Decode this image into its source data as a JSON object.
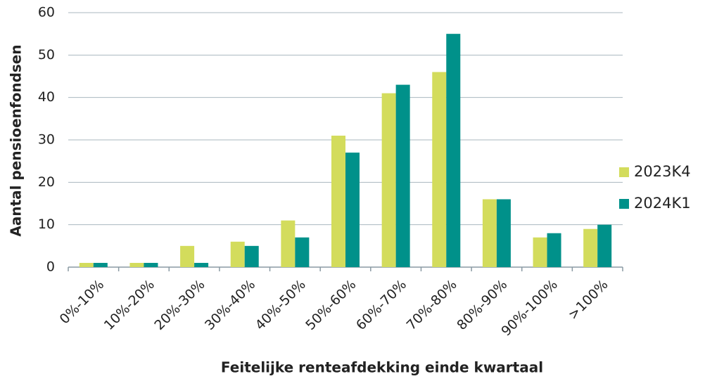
{
  "chart_data": {
    "type": "bar",
    "x_label": "Feitelijke renteafdekking einde kwartaal",
    "y_label": "Aantal pensioenfondsen",
    "categories": [
      "0%-10%",
      "10%-20%",
      "20%-30%",
      "30%-40%",
      "40%-50%",
      "50%-60%",
      "60%-70%",
      "70%-80%",
      "80%-90%",
      "90%-100%",
      ">100%"
    ],
    "series": [
      {
        "name": "2023K4",
        "color": "#d3dc5c",
        "values": [
          1,
          1,
          5,
          6,
          11,
          31,
          41,
          46,
          16,
          7,
          9
        ]
      },
      {
        "name": "2024K1",
        "color": "#00918a",
        "values": [
          1,
          1,
          1,
          5,
          7,
          27,
          43,
          55,
          16,
          8,
          10
        ]
      }
    ],
    "ylim": [
      0,
      60
    ],
    "yticks": [
      0,
      10,
      20,
      30,
      40,
      50,
      60
    ],
    "grid": true,
    "legend": "right"
  }
}
